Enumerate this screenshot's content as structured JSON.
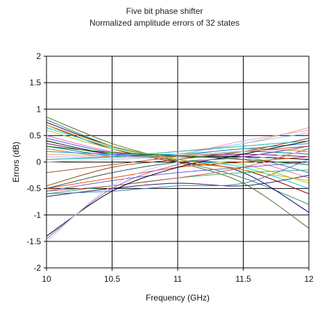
{
  "chart_data": {
    "type": "line",
    "title": "Five bit phase shifter",
    "subtitle": "Normalized amplitude errors of 32 states",
    "xlabel": "Frequency (GHz)",
    "ylabel": "Errors (dB)",
    "xlim": [
      10,
      12
    ],
    "ylim": [
      -2,
      2
    ],
    "xticks": [
      "10",
      "10.5",
      "11",
      "11.5",
      "12"
    ],
    "yticks": [
      "2",
      "1.5",
      "1",
      "0.5",
      "0",
      "-0.5",
      "-1",
      "-1.5",
      "-2"
    ],
    "grid": true,
    "legend": "none",
    "x": [
      10,
      10.5,
      11,
      11.5,
      12
    ],
    "series": [
      {
        "color": "#556b2f",
        "values": [
          0.85,
          0.35,
          0.0,
          -0.4,
          -1.25
        ]
      },
      {
        "color": "#2e8b57",
        "values": [
          0.8,
          0.3,
          0.02,
          -0.3,
          -0.8
        ]
      },
      {
        "color": "#000080",
        "values": [
          0.75,
          0.3,
          0.05,
          -0.2,
          -0.95
        ]
      },
      {
        "color": "#8b0000",
        "values": [
          0.7,
          0.25,
          0.0,
          -0.15,
          -0.6
        ]
      },
      {
        "color": "#00ced1",
        "values": [
          0.65,
          0.28,
          0.05,
          -0.1,
          -0.5
        ]
      },
      {
        "color": "#9acd32",
        "values": [
          0.6,
          0.25,
          0.05,
          -0.05,
          -0.4
        ]
      },
      {
        "color": "#ff69b4",
        "values": [
          0.5,
          0.2,
          0.1,
          0.05,
          -0.3
        ]
      },
      {
        "color": "#4169e1",
        "values": [
          0.45,
          0.18,
          0.1,
          0.1,
          -0.2
        ]
      },
      {
        "color": "#000000",
        "values": [
          0.4,
          0.15,
          0.1,
          0.1,
          0.05
        ]
      },
      {
        "color": "#800080",
        "values": [
          0.35,
          0.15,
          0.12,
          0.15,
          0.1
        ]
      },
      {
        "color": "#008080",
        "values": [
          0.3,
          0.12,
          0.1,
          0.2,
          0.15
        ]
      },
      {
        "color": "#b8860b",
        "values": [
          0.25,
          0.1,
          0.12,
          0.25,
          0.2
        ]
      },
      {
        "color": "#1e90ff",
        "values": [
          0.2,
          0.15,
          0.15,
          0.25,
          0.35
        ]
      },
      {
        "color": "#f4a460",
        "values": [
          0.15,
          0.12,
          0.2,
          0.35,
          0.65
        ]
      },
      {
        "color": "#dda0dd",
        "values": [
          0.1,
          0.1,
          0.15,
          0.4,
          0.6
        ]
      },
      {
        "color": "#87cefa",
        "values": [
          0.05,
          0.08,
          0.15,
          0.35,
          0.55
        ]
      },
      {
        "color": "#8b4513",
        "values": [
          -0.45,
          -0.1,
          0.05,
          0.2,
          0.45
        ]
      },
      {
        "color": "#2f4f4f",
        "values": [
          -0.5,
          -0.2,
          0.0,
          0.1,
          0.3
        ]
      },
      {
        "color": "#ff4500",
        "values": [
          -0.5,
          -0.3,
          -0.1,
          0.0,
          0.1
        ]
      },
      {
        "color": "#6a5acd",
        "values": [
          -0.55,
          -0.35,
          -0.2,
          -0.1,
          0.0
        ]
      },
      {
        "color": "#3cb371",
        "values": [
          -0.6,
          -0.45,
          -0.3,
          -0.2,
          -0.15
        ]
      },
      {
        "color": "#191970",
        "values": [
          -0.65,
          -0.5,
          -0.4,
          -0.45,
          -0.25
        ]
      },
      {
        "color": "#4682b4",
        "values": [
          -0.6,
          -0.55,
          -0.45,
          -0.4,
          0.05
        ]
      },
      {
        "color": "#cd5c5c",
        "values": [
          -0.55,
          -0.45,
          -0.3,
          -0.1,
          0.25
        ]
      },
      {
        "color": "#000000",
        "values": [
          -1.4,
          -0.55,
          -0.1,
          0.15,
          0.4
        ]
      },
      {
        "color": "#ba55d3",
        "values": [
          -1.45,
          -0.5,
          -0.05,
          0.1,
          0.3
        ]
      },
      {
        "color": "#add8e6",
        "values": [
          -1.5,
          -0.45,
          0.0,
          0.05,
          0.2
        ]
      },
      {
        "color": "#20b2aa",
        "values": [
          0.05,
          0.1,
          0.2,
          0.3,
          0.4
        ]
      },
      {
        "color": "#a0522d",
        "values": [
          -0.2,
          -0.05,
          0.1,
          0.2,
          0.3
        ]
      },
      {
        "color": "#ffa500",
        "values": [
          0.7,
          0.3,
          0.05,
          -0.15,
          -0.35
        ]
      },
      {
        "color": "#008000",
        "values": [
          0.3,
          0.18,
          0.12,
          0.05,
          -0.05
        ]
      },
      {
        "color": "#c0c0c0",
        "values": [
          0.0,
          0.05,
          0.1,
          0.2,
          0.25
        ]
      }
    ]
  }
}
